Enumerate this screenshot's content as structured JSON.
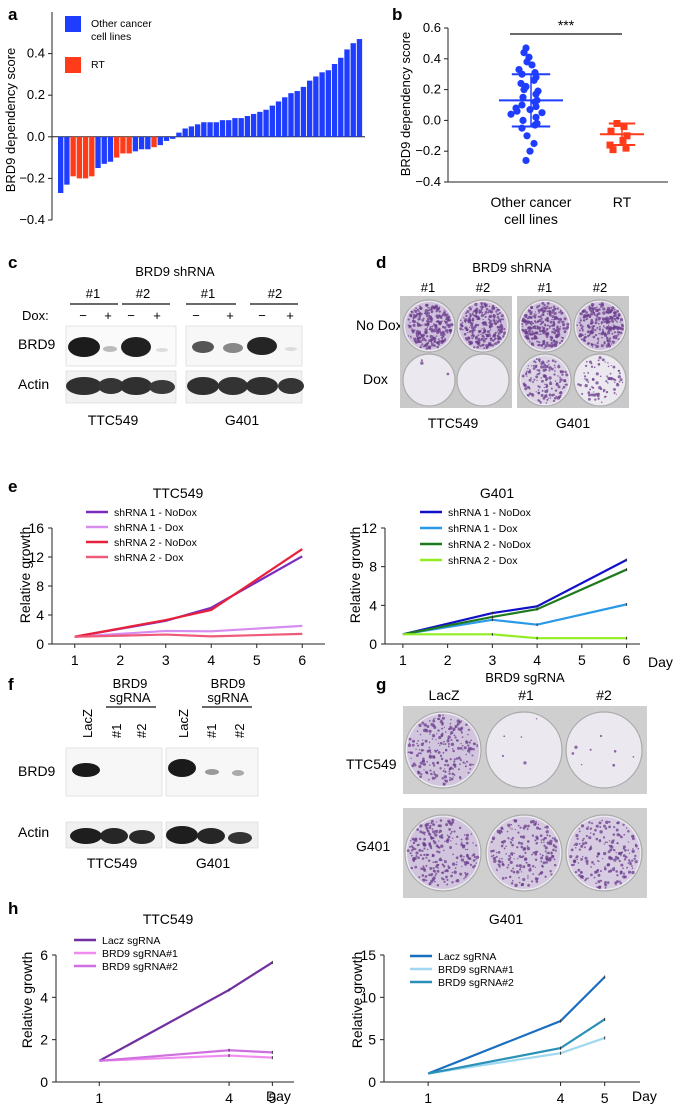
{
  "panels": {
    "a": "a",
    "b": "b",
    "c": "c",
    "d": "d",
    "e": "e",
    "f": "f",
    "g": "g",
    "h": "h"
  },
  "blots_c": {
    "title": "BRD9 shRNA",
    "groups": [
      "#1",
      "#2",
      "#1",
      "#2"
    ],
    "dox_label": "Dox:",
    "dox_signs": [
      "−",
      "+",
      "−",
      "+",
      "−",
      "+",
      "−",
      "+"
    ],
    "rows": [
      "BRD9",
      "Actin"
    ],
    "cell_lines": [
      "TTC549",
      "G401"
    ]
  },
  "plates_d": {
    "title": "BRD9 shRNA",
    "groups": [
      "#1",
      "#2",
      "#1",
      "#2"
    ],
    "rows": [
      "No Dox",
      "Dox"
    ],
    "cell_lines": [
      "TTC549",
      "G401"
    ]
  },
  "blots_f": {
    "lanes_ttc": [
      "LacZ",
      "#1",
      "#2"
    ],
    "lanes_g401": [
      "LacZ",
      "#1",
      "#2"
    ],
    "group_label_1": "BRD9",
    "group_label_2": "sgRNA",
    "rows": [
      "BRD9",
      "Actin"
    ],
    "cell_lines": [
      "TTC549",
      "G401"
    ]
  },
  "plates_g": {
    "title": "BRD9 sgRNA",
    "cols": [
      "LacZ",
      "#1",
      "#2"
    ],
    "rows": [
      "TTC549",
      "G401"
    ]
  },
  "colors": {
    "blue": "#1f3dff",
    "red": "#ff3b1a",
    "purple_dark": "#7b2cbf",
    "purple_light": "#d78cf0",
    "red_line": "#e8203a",
    "pink": "#f05a7a",
    "navy": "#1010c8",
    "skyblue": "#2a9ae8",
    "green": "#1e7a1e",
    "lime": "#90ee20",
    "h_purple": "#7030a0",
    "h_pink": "#f08cf0",
    "h_violet": "#d070e0",
    "h_blue": "#1a6ec0",
    "h_lightblue": "#9fd8f0",
    "h_teal": "#2a90b8",
    "stain": "#6a3c8c"
  },
  "chart_data": [
    {
      "id": "a",
      "type": "bar",
      "ylabel": "BRD9 dependency score",
      "ylim": [
        -0.4,
        0.6
      ],
      "yticks": [
        "−0.4",
        "−0.2",
        "0.0",
        "0.2",
        "0.4"
      ],
      "ytick_values": [
        -0.4,
        -0.2,
        0.0,
        0.2,
        0.4
      ],
      "legend": [
        "Other cancer cell lines",
        "RT"
      ],
      "legend_line1": "Other cancer",
      "legend_line2": "cell lines",
      "values": [
        -0.27,
        -0.23,
        -0.19,
        -0.2,
        -0.2,
        -0.19,
        -0.15,
        -0.13,
        -0.12,
        -0.1,
        -0.08,
        -0.08,
        -0.07,
        -0.06,
        -0.06,
        -0.05,
        -0.04,
        -0.02,
        -0.01,
        0.02,
        0.04,
        0.05,
        0.06,
        0.07,
        0.07,
        0.07,
        0.08,
        0.08,
        0.09,
        0.09,
        0.1,
        0.11,
        0.12,
        0.13,
        0.15,
        0.17,
        0.19,
        0.21,
        0.22,
        0.24,
        0.27,
        0.29,
        0.31,
        0.32,
        0.35,
        0.38,
        0.42,
        0.45,
        0.47
      ],
      "groups": [
        "other",
        "other",
        "RT",
        "RT",
        "RT",
        "RT",
        "other",
        "other",
        "other",
        "RT",
        "RT",
        "RT",
        "other",
        "other",
        "other",
        "RT",
        "other",
        "other",
        "other",
        "other",
        "other",
        "other",
        "other",
        "other",
        "other",
        "other",
        "other",
        "other",
        "other",
        "other",
        "other",
        "other",
        "other",
        "other",
        "other",
        "other",
        "other",
        "other",
        "other",
        "other",
        "other",
        "other",
        "other",
        "other",
        "other",
        "other",
        "other",
        "other",
        "other"
      ]
    },
    {
      "id": "b",
      "type": "scatter",
      "ylabel": "BRD9 dependency score",
      "ylim": [
        -0.4,
        0.6
      ],
      "yticks": [
        "−0.4",
        "−0.2",
        "0.0",
        "0.2",
        "0.4",
        "0.6"
      ],
      "ytick_values": [
        -0.4,
        -0.2,
        0.0,
        0.2,
        0.4,
        0.6
      ],
      "categories": [
        "Other cancer cell lines",
        "RT"
      ],
      "cat1_line1": "Other cancer",
      "cat1_line2": "cell lines",
      "cat2": "RT",
      "significance": "***",
      "series": [
        {
          "group": "Other cancer cell lines",
          "mean": 0.13,
          "sd": 0.17,
          "values": [
            0.47,
            0.44,
            0.41,
            0.38,
            0.36,
            0.33,
            0.31,
            0.3,
            0.28,
            0.26,
            0.24,
            0.22,
            0.2,
            0.19,
            0.17,
            0.15,
            0.13,
            0.12,
            0.1,
            0.09,
            0.08,
            0.07,
            0.06,
            0.05,
            0.04,
            0.02,
            0.0,
            -0.02,
            -0.03,
            -0.05,
            -0.1,
            -0.15,
            -0.2,
            -0.26
          ]
        },
        {
          "group": "RT",
          "mean": -0.09,
          "sd": 0.07,
          "values": [
            -0.02,
            -0.04,
            -0.07,
            -0.1,
            -0.13,
            -0.16,
            -0.18,
            -0.19
          ]
        }
      ]
    },
    {
      "id": "e1",
      "type": "line",
      "title": "TTC549",
      "ylabel": "Relative growth",
      "ylim": [
        0,
        16
      ],
      "yticks": [
        "0",
        "4",
        "8",
        "12",
        "16"
      ],
      "ytick_values": [
        0,
        4,
        8,
        12,
        16
      ],
      "x": [
        1,
        3,
        4,
        6
      ],
      "xticks": [
        "1",
        "2",
        "3",
        "4",
        "5",
        "6"
      ],
      "xtick_values": [
        1,
        2,
        3,
        4,
        5,
        6
      ],
      "series": [
        {
          "name": "shRNA 1 - NoDox",
          "values": [
            1,
            3.2,
            5.0,
            12.1
          ],
          "color": "#7b2cbf"
        },
        {
          "name": "shRNA 1 - Dox",
          "values": [
            1,
            1.8,
            1.75,
            2.5
          ],
          "color": "#d78cf0"
        },
        {
          "name": "shRNA 2 - NoDox",
          "values": [
            1,
            3.3,
            4.7,
            13.1
          ],
          "color": "#e8203a"
        },
        {
          "name": "shRNA 2 - Dox",
          "values": [
            1,
            1.3,
            1.05,
            1.4
          ],
          "color": "#f05a7a"
        }
      ]
    },
    {
      "id": "e2",
      "type": "line",
      "title": "G401",
      "ylabel": "Relative growth",
      "xlabel": "Day",
      "ylim": [
        0,
        12
      ],
      "yticks": [
        "0",
        "4",
        "8",
        "12"
      ],
      "ytick_values": [
        0,
        4,
        8,
        12
      ],
      "x": [
        1,
        3,
        4,
        6
      ],
      "xticks": [
        "1",
        "2",
        "3",
        "4",
        "5",
        "6"
      ],
      "xtick_values": [
        1,
        2,
        3,
        4,
        5,
        6
      ],
      "series": [
        {
          "name": "shRNA 1 - NoDox",
          "values": [
            1,
            3.2,
            3.9,
            8.7
          ],
          "color": "#1010c8"
        },
        {
          "name": "shRNA 1 - Dox",
          "values": [
            1,
            2.5,
            2.0,
            4.1
          ],
          "color": "#2a9ae8"
        },
        {
          "name": "shRNA 2 - NoDox",
          "values": [
            1,
            2.8,
            3.6,
            7.7
          ],
          "color": "#1e7a1e"
        },
        {
          "name": "shRNA 2 - Dox",
          "values": [
            1,
            1.0,
            0.6,
            0.6
          ],
          "color": "#90ee20"
        }
      ]
    },
    {
      "id": "h1",
      "type": "line",
      "title": "TTC549",
      "ylabel": "Relative growth",
      "xlabel": "Day",
      "ylim": [
        0,
        6
      ],
      "yticks": [
        "0",
        "2",
        "4",
        "6"
      ],
      "ytick_values": [
        0,
        2,
        4,
        6
      ],
      "x": [
        1,
        4,
        5
      ],
      "xticks": [
        "1",
        "4",
        "5"
      ],
      "xtick_values": [
        1,
        4,
        5
      ],
      "xlim": [
        0,
        6
      ],
      "series": [
        {
          "name": "Lacz sgRNA",
          "values": [
            1,
            4.35,
            5.65
          ],
          "color": "#7030a0"
        },
        {
          "name": "BRD9 sgRNA#1",
          "values": [
            1,
            1.25,
            1.15
          ],
          "color": "#f08cf0"
        },
        {
          "name": "BRD9 sgRNA#2",
          "values": [
            1,
            1.5,
            1.4
          ],
          "color": "#d070e0"
        }
      ]
    },
    {
      "id": "h2",
      "type": "line",
      "title": "G401",
      "ylabel": "Relative growth",
      "xlabel": "Day",
      "ylim": [
        0,
        15
      ],
      "yticks": [
        "0",
        "5",
        "10",
        "15"
      ],
      "ytick_values": [
        0,
        5,
        10,
        15
      ],
      "x": [
        1,
        4,
        5
      ],
      "xticks": [
        "1",
        "4",
        "5"
      ],
      "xtick_values": [
        1,
        4,
        5
      ],
      "xlim": [
        0,
        6
      ],
      "series": [
        {
          "name": "Lacz sgRNA",
          "values": [
            1,
            7.2,
            12.4
          ],
          "color": "#1a6ec0"
        },
        {
          "name": "BRD9 sgRNA#1",
          "values": [
            1,
            3.4,
            5.2
          ],
          "color": "#9fd8f0"
        },
        {
          "name": "BRD9 sgRNA#2",
          "values": [
            1,
            4.0,
            7.4
          ],
          "color": "#2a90b8"
        }
      ]
    }
  ]
}
